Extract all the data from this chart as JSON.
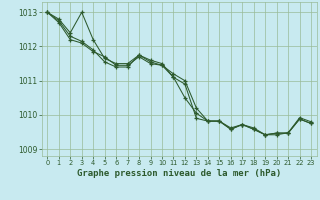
{
  "title": "Graphe pression niveau de la mer (hPa)",
  "background_color": "#c8eaf0",
  "grid_color": "#99bb99",
  "line_color": "#2d5a2d",
  "xlim": [
    -0.5,
    23.5
  ],
  "ylim": [
    1008.8,
    1013.3
  ],
  "yticks": [
    1009,
    1010,
    1011,
    1012,
    1013
  ],
  "xticks": [
    0,
    1,
    2,
    3,
    4,
    5,
    6,
    7,
    8,
    9,
    10,
    11,
    12,
    13,
    14,
    15,
    16,
    17,
    18,
    19,
    20,
    21,
    22,
    23
  ],
  "line1_x": [
    0,
    1,
    2,
    3,
    4,
    5,
    6,
    7,
    8,
    9,
    10,
    11,
    12,
    13,
    14,
    15,
    16,
    17,
    18,
    19,
    20,
    21,
    22,
    23
  ],
  "line1_y": [
    1013.0,
    1012.8,
    1012.4,
    1013.0,
    1012.2,
    1011.65,
    1011.5,
    1011.5,
    1011.75,
    1011.6,
    1011.5,
    1011.1,
    1010.5,
    1010.05,
    1009.82,
    1009.82,
    1009.62,
    1009.72,
    1009.62,
    1009.42,
    1009.42,
    1009.48,
    1009.92,
    1009.8
  ],
  "line2_x": [
    0,
    1,
    2,
    3,
    4,
    5,
    6,
    7,
    8,
    9,
    10,
    11,
    12,
    13,
    14,
    15,
    16,
    17,
    18,
    19,
    20,
    21,
    22,
    23
  ],
  "line2_y": [
    1013.0,
    1012.75,
    1012.3,
    1012.15,
    1011.9,
    1011.55,
    1011.4,
    1011.4,
    1011.75,
    1011.55,
    1011.45,
    1011.2,
    1011.0,
    1010.2,
    1009.82,
    1009.82,
    1009.58,
    1009.72,
    1009.58,
    1009.42,
    1009.47,
    1009.47,
    1009.88,
    1009.75
  ],
  "line3_x": [
    0,
    1,
    2,
    3,
    4,
    5,
    6,
    7,
    8,
    9,
    10,
    11,
    12,
    13,
    14,
    15,
    16,
    17,
    18,
    19,
    20,
    21,
    22,
    23
  ],
  "line3_y": [
    1013.0,
    1012.7,
    1012.2,
    1012.1,
    1011.85,
    1011.7,
    1011.45,
    1011.45,
    1011.7,
    1011.5,
    1011.45,
    1011.1,
    1010.9,
    1009.9,
    1009.82,
    1009.82,
    1009.58,
    1009.72,
    1009.58,
    1009.42,
    1009.47,
    1009.47,
    1009.88,
    1009.75
  ]
}
